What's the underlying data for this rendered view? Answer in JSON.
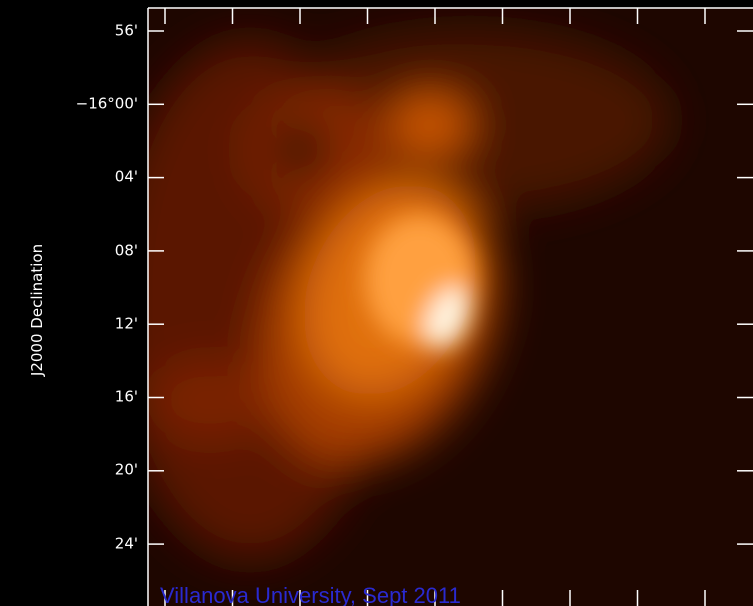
{
  "axis": {
    "label": "J2000 Declination",
    "ticks": [
      "56'",
      "−16°00'",
      "04'",
      "08'",
      "12'",
      "16'",
      "20'",
      "24'"
    ]
  },
  "watermark": "Villanova University, Sept 2011"
}
